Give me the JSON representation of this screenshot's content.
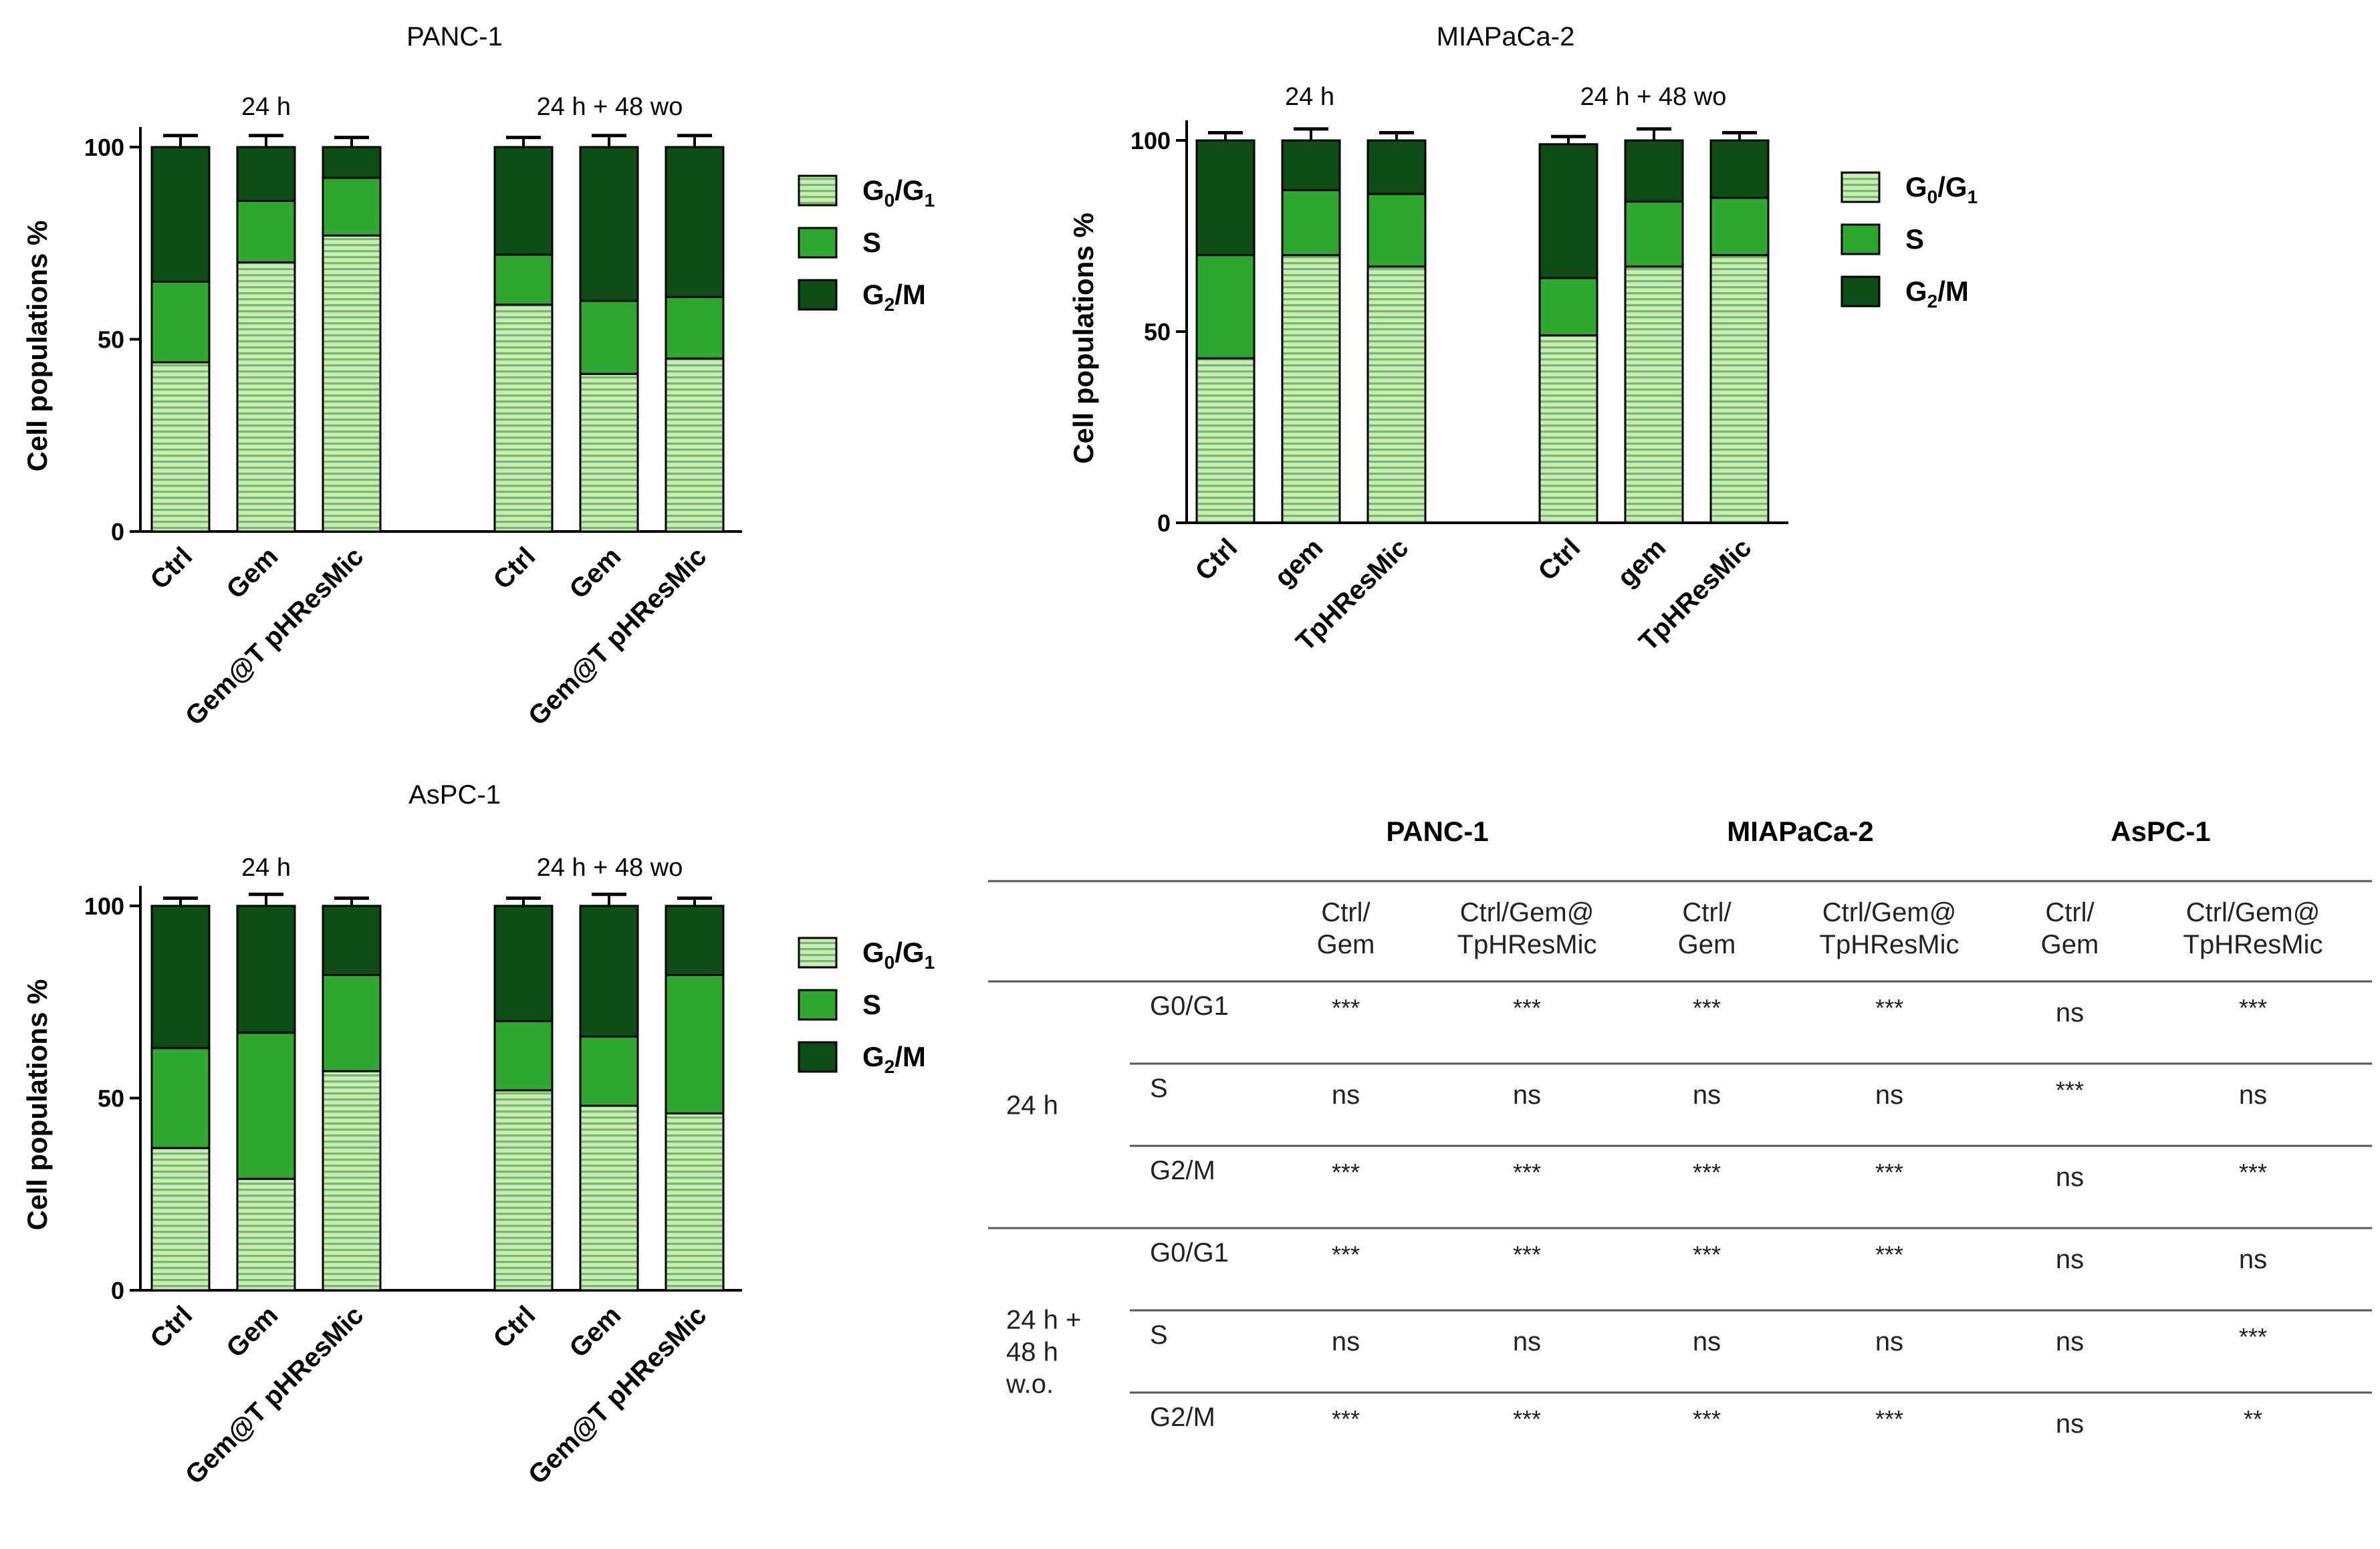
{
  "chart_data": [
    {
      "type": "bar",
      "stacked": true,
      "title": "PANC-1",
      "ylabel": "Cell populations %",
      "ylim": [
        0,
        100
      ],
      "yticks": [
        0,
        50,
        100
      ],
      "groups": [
        {
          "label": "24 h",
          "categories": [
            "Ctrl",
            "Gem",
            "Gem@T pHResMic"
          ]
        },
        {
          "label": "24 h + 48 wo",
          "categories": [
            "Ctrl",
            "Gem",
            "Gem@T pHResMic"
          ]
        }
      ],
      "series": [
        {
          "name": "G0/G1",
          "color": "#b8e0a8",
          "pattern": "horizontal-stripes",
          "values": [
            44,
            70,
            77,
            59,
            41,
            45
          ],
          "errors": [
            2.5,
            2.5,
            1.5,
            2,
            2.5,
            2.5
          ]
        },
        {
          "name": "S",
          "color": "#2ea82e",
          "values": [
            21,
            16,
            15,
            13,
            19,
            16
          ],
          "errors": [
            2.5,
            2.5,
            2,
            1.5,
            2.5,
            2.5
          ]
        },
        {
          "name": "G2/M",
          "color": "#0b4d12",
          "values": [
            35,
            14,
            8,
            28,
            40,
            39
          ],
          "errors": [
            3,
            3,
            2.5,
            2.5,
            3,
            3
          ]
        }
      ],
      "legend": {
        "position": "right",
        "entries": [
          {
            "main": "G",
            "sub1": "0",
            "mid": "/G",
            "sub2": "1"
          },
          {
            "main": "S"
          },
          {
            "main": "G",
            "sub1": "2",
            "mid": "/M"
          }
        ]
      }
    },
    {
      "type": "bar",
      "stacked": true,
      "title": "MIAPaCa-2",
      "ylabel": "Cell populations %",
      "ylim": [
        0,
        100
      ],
      "yticks": [
        0,
        50,
        100
      ],
      "groups": [
        {
          "label": "24 h",
          "categories": [
            "Ctrl",
            "gem",
            "TpHResMic"
          ]
        },
        {
          "label": "24 h + 48 wo",
          "categories": [
            "Ctrl",
            "gem",
            "TpHResMic"
          ]
        }
      ],
      "series": [
        {
          "name": "G0/G1",
          "color": "#b8e0a8",
          "pattern": "horizontal-stripes",
          "values": [
            43,
            70,
            67,
            49,
            67,
            70
          ],
          "errors": [
            1.5,
            2,
            2,
            2,
            2.5,
            2
          ]
        },
        {
          "name": "S",
          "color": "#2ea82e",
          "values": [
            27,
            17,
            19,
            15,
            17,
            15
          ],
          "errors": [
            1.5,
            2.5,
            2,
            2,
            2.5,
            2
          ]
        },
        {
          "name": "G2/M",
          "color": "#0b4d12",
          "values": [
            30,
            13,
            14,
            35,
            16,
            15
          ],
          "errors": [
            2,
            3,
            2,
            2,
            3,
            2
          ]
        }
      ],
      "legend": {
        "position": "right",
        "entries": [
          {
            "main": "G",
            "sub1": "0",
            "mid": "/G",
            "sub2": "1"
          },
          {
            "main": "S"
          },
          {
            "main": "G",
            "sub1": "2",
            "mid": "/M"
          }
        ]
      }
    },
    {
      "type": "bar",
      "stacked": true,
      "title": "AsPC-1",
      "ylabel": "Cell populations %",
      "ylim": [
        0,
        100
      ],
      "yticks": [
        0,
        50,
        100
      ],
      "groups": [
        {
          "label": "24 h",
          "categories": [
            "Ctrl",
            "Gem",
            "Gem@T pHResMic"
          ]
        },
        {
          "label": "24 h + 48 wo",
          "categories": [
            "Ctrl",
            "Gem",
            "Gem@T pHResMic"
          ]
        }
      ],
      "series": [
        {
          "name": "G0/G1",
          "color": "#b8e0a8",
          "pattern": "horizontal-stripes",
          "values": [
            37,
            29,
            57,
            52,
            48,
            46
          ],
          "errors": [
            1.5,
            2.5,
            2,
            2,
            2.5,
            2
          ]
        },
        {
          "name": "S",
          "color": "#2ea82e",
          "values": [
            26,
            38,
            25,
            18,
            18,
            36
          ],
          "errors": [
            1.5,
            3,
            2,
            2,
            3,
            1.5
          ]
        },
        {
          "name": "G2/M",
          "color": "#0b4d12",
          "values": [
            37,
            33,
            18,
            30,
            34,
            18
          ],
          "errors": [
            2,
            3,
            2,
            2,
            3,
            2
          ]
        }
      ],
      "legend": {
        "position": "right",
        "entries": [
          {
            "main": "G",
            "sub1": "0",
            "mid": "/G",
            "sub2": "1"
          },
          {
            "main": "S"
          },
          {
            "main": "G",
            "sub1": "2",
            "mid": "/M"
          }
        ]
      }
    },
    {
      "type": "table",
      "cell_lines": [
        "PANC-1",
        "MIAPaCa-2",
        "AsPC-1"
      ],
      "comparisons": [
        [
          "Ctrl/",
          "Gem"
        ],
        [
          "Ctrl/Gem@",
          "TpHResMic"
        ]
      ],
      "row_groups": [
        {
          "label": [
            "24 h"
          ],
          "rows": [
            {
              "phase": "G0/G1",
              "cells": [
                "***",
                "***",
                "***",
                "***",
                "ns",
                "***"
              ]
            },
            {
              "phase": "S",
              "cells": [
                "ns",
                "ns",
                "ns",
                "ns",
                "***",
                "ns"
              ]
            },
            {
              "phase": "G2/M",
              "cells": [
                "***",
                "***",
                "***",
                "***",
                "ns",
                "***"
              ]
            }
          ]
        },
        {
          "label": [
            "24 h +",
            "48 h",
            "w.o."
          ],
          "rows": [
            {
              "phase": "G0/G1",
              "cells": [
                "***",
                "***",
                "***",
                "***",
                "ns",
                "ns"
              ]
            },
            {
              "phase": "S",
              "cells": [
                "ns",
                "ns",
                "ns",
                "ns",
                "ns",
                "***"
              ]
            },
            {
              "phase": "G2/M",
              "cells": [
                "***",
                "***",
                "***",
                "***",
                "ns",
                "**"
              ]
            }
          ]
        }
      ]
    }
  ]
}
